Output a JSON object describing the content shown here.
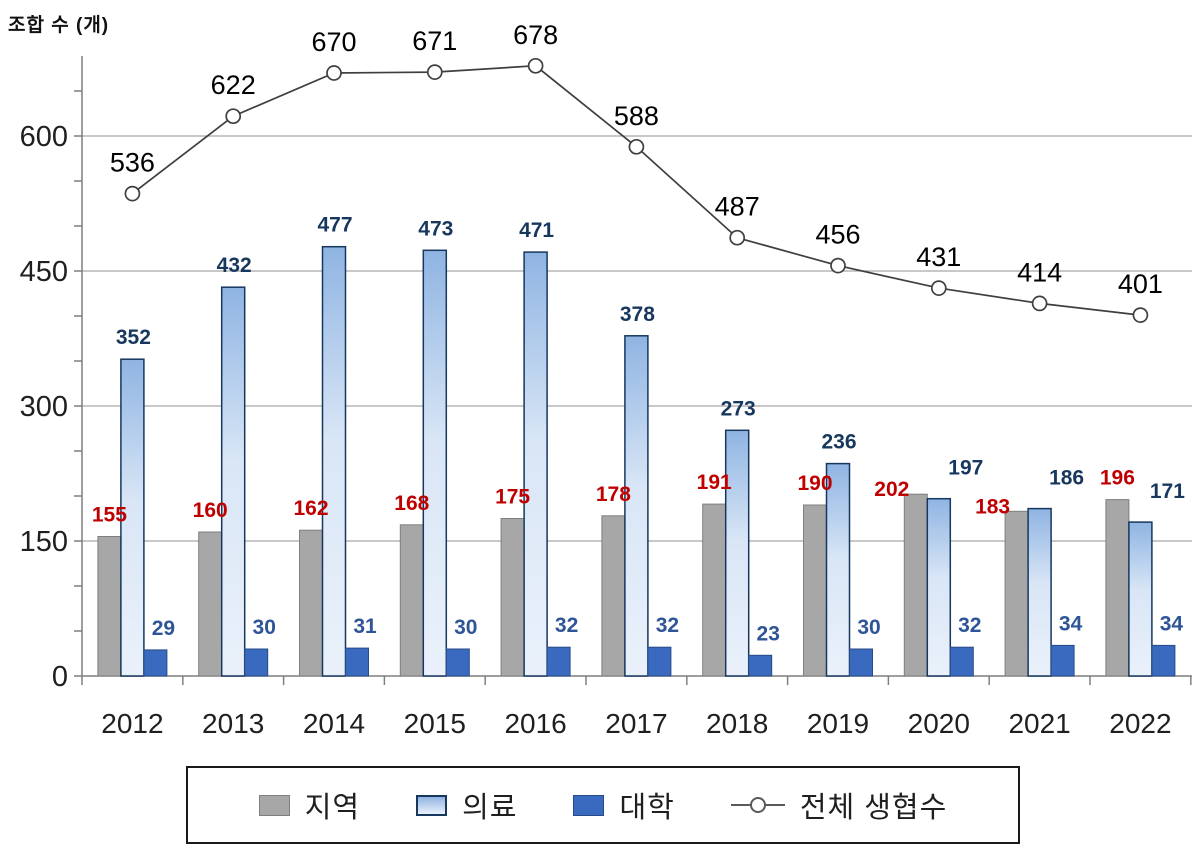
{
  "header": {
    "y_axis_title": "조합 수 (개)"
  },
  "chart_data": {
    "type": "bar+line",
    "title": "",
    "ylabel": "조합 수 (개)",
    "xlabel": "",
    "categories": [
      "2012",
      "2013",
      "2014",
      "2015",
      "2016",
      "2017",
      "2018",
      "2019",
      "2020",
      "2021",
      "2022"
    ],
    "series": [
      {
        "key": "region",
        "name": "지역",
        "type": "bar",
        "values": [
          155,
          160,
          162,
          168,
          175,
          178,
          191,
          190,
          202,
          183,
          196
        ]
      },
      {
        "key": "medical",
        "name": "의료",
        "type": "bar",
        "values": [
          352,
          432,
          477,
          473,
          471,
          378,
          273,
          236,
          197,
          186,
          171
        ]
      },
      {
        "key": "univ",
        "name": "대학",
        "type": "bar",
        "values": [
          29,
          30,
          31,
          30,
          32,
          32,
          23,
          30,
          32,
          34,
          34
        ]
      },
      {
        "key": "total",
        "name": "전체 생협수",
        "type": "line",
        "values": [
          536,
          622,
          670,
          671,
          678,
          588,
          487,
          456,
          431,
          414,
          401
        ]
      }
    ],
    "y_axis": {
      "min": 0,
      "max": 690,
      "major_ticks": [
        0,
        150,
        300,
        450,
        600
      ],
      "minor_tick_step": 50
    },
    "grid": true,
    "legend_position": "bottom"
  },
  "colors": {
    "region_bar": "#a7a7a7",
    "region_border": "#7f7f7f",
    "region_label": "#c00000",
    "medical_top": "#8fb4e2",
    "medical_mid": "#d9e6f6",
    "medical_bottom": "#eaf1fb",
    "medical_border": "#17375e",
    "medical_label": "#17375e",
    "univ_bar": "#3a6ac0",
    "univ_border": "#274b85",
    "univ_label": "#2e5597",
    "line": "#3f3f3f",
    "line_label": "#000000",
    "marker_fill": "#ffffff",
    "grid": "#a6a6a6",
    "axis": "#7f7f7f",
    "tick_text": "#1f1f1f",
    "legend_border": "#1a1a1a",
    "legend_line_marker": "#595959"
  }
}
